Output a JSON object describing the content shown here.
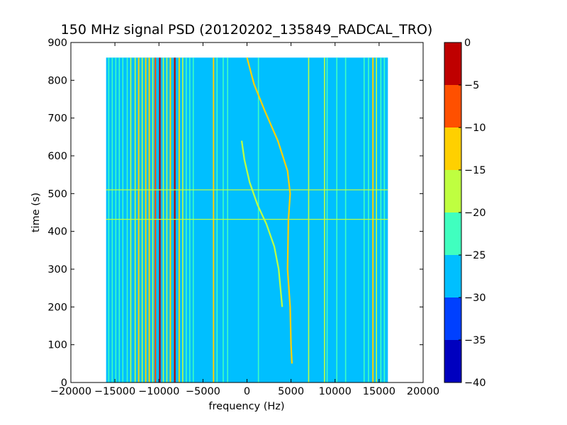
{
  "chart_data": {
    "type": "heatmap",
    "title": "150 MHz signal PSD (20120202_135849_RADCAL_TRO)",
    "xlabel": "frequency (Hz)",
    "ylabel": "time (s)",
    "xlim": [
      -20000,
      20000
    ],
    "ylim": [
      0,
      900
    ],
    "x_ticks": [
      -20000,
      -15000,
      -10000,
      -5000,
      0,
      5000,
      10000,
      15000,
      20000
    ],
    "y_ticks": [
      0,
      100,
      200,
      300,
      400,
      500,
      600,
      700,
      800,
      900
    ],
    "data_extent": {
      "x": [
        -16000,
        16000
      ],
      "y": [
        0,
        860
      ]
    },
    "background_level": -27.5,
    "colorbar": {
      "ticks": [
        0,
        -5,
        -10,
        -15,
        -20,
        -25,
        -30,
        -35,
        -40
      ],
      "levels": [
        {
          "range": [
            -40,
            -35
          ],
          "color": "#0000bf"
        },
        {
          "range": [
            -35,
            -30
          ],
          "color": "#0040ff"
        },
        {
          "range": [
            -30,
            -25
          ],
          "color": "#00bfff"
        },
        {
          "range": [
            -25,
            -20
          ],
          "color": "#40ffbf"
        },
        {
          "range": [
            -20,
            -15
          ],
          "color": "#bfff40"
        },
        {
          "range": [
            -15,
            -10
          ],
          "color": "#ffd000"
        },
        {
          "range": [
            -10,
            -5
          ],
          "color": "#ff5000"
        },
        {
          "range": [
            -5,
            0
          ],
          "color": "#bf0000"
        }
      ]
    },
    "vertical_lines": [
      {
        "x": -15700,
        "level": -22.5
      },
      {
        "x": -15300,
        "level": -22.5
      },
      {
        "x": -14900,
        "level": -22.5
      },
      {
        "x": -14500,
        "level": -22.5
      },
      {
        "x": -14100,
        "level": -22.5
      },
      {
        "x": -13600,
        "level": -22.5
      },
      {
        "x": -13200,
        "level": -17.5
      },
      {
        "x": -12700,
        "level": -17.5
      },
      {
        "x": -12300,
        "level": -12.5
      },
      {
        "x": -11900,
        "level": -17.5
      },
      {
        "x": -11500,
        "level": -12.5
      },
      {
        "x": -11100,
        "level": -12.5
      },
      {
        "x": -10700,
        "level": -17.5
      },
      {
        "x": -10400,
        "level": -7.5
      },
      {
        "x": -9900,
        "level": -2.5
      },
      {
        "x": -9500,
        "level": -17.5
      },
      {
        "x": -9100,
        "level": -17.5
      },
      {
        "x": -8700,
        "level": -12.5
      },
      {
        "x": -8200,
        "level": -2.5
      },
      {
        "x": -7700,
        "level": -12.5
      },
      {
        "x": -7300,
        "level": -17.5
      },
      {
        "x": -6900,
        "level": -22.5
      },
      {
        "x": -6500,
        "level": -22.5
      },
      {
        "x": -6100,
        "level": -22.5
      },
      {
        "x": -3800,
        "level": -12.5
      },
      {
        "x": -3400,
        "level": -22.5
      },
      {
        "x": -2700,
        "level": -22.5
      },
      {
        "x": -2200,
        "level": -22.5
      },
      {
        "x": 1300,
        "level": -22.5
      },
      {
        "x": 7000,
        "level": -17.5
      },
      {
        "x": 8800,
        "level": -17.5
      },
      {
        "x": 9100,
        "level": -22.5
      },
      {
        "x": 10200,
        "level": -22.5
      },
      {
        "x": 11200,
        "level": -22.5
      },
      {
        "x": 13300,
        "level": -22.5
      },
      {
        "x": 13800,
        "level": -22.5
      },
      {
        "x": 14300,
        "level": -12.5
      },
      {
        "x": 14700,
        "level": -17.5
      },
      {
        "x": 15200,
        "level": -22.5
      },
      {
        "x": 15600,
        "level": -22.5
      }
    ],
    "horizontal_lines": [
      {
        "y": 510,
        "level": -17.5
      },
      {
        "y": 432,
        "level": -17.5
      }
    ],
    "curved_tracks": [
      {
        "level": -12.5,
        "points": [
          [
            0,
            860
          ],
          [
            800,
            790
          ],
          [
            2000,
            720
          ],
          [
            3500,
            640
          ],
          [
            4600,
            560
          ],
          [
            4900,
            500
          ],
          [
            4700,
            430
          ],
          [
            4600,
            300
          ],
          [
            4900,
            200
          ],
          [
            5000,
            100
          ],
          [
            5100,
            50
          ]
        ]
      },
      {
        "level": -17.5,
        "points": [
          [
            -600,
            640
          ],
          [
            -300,
            590
          ],
          [
            300,
            530
          ],
          [
            1200,
            470
          ],
          [
            2200,
            420
          ],
          [
            3100,
            360
          ],
          [
            3600,
            300
          ],
          [
            3800,
            250
          ],
          [
            4000,
            200
          ]
        ]
      }
    ]
  }
}
